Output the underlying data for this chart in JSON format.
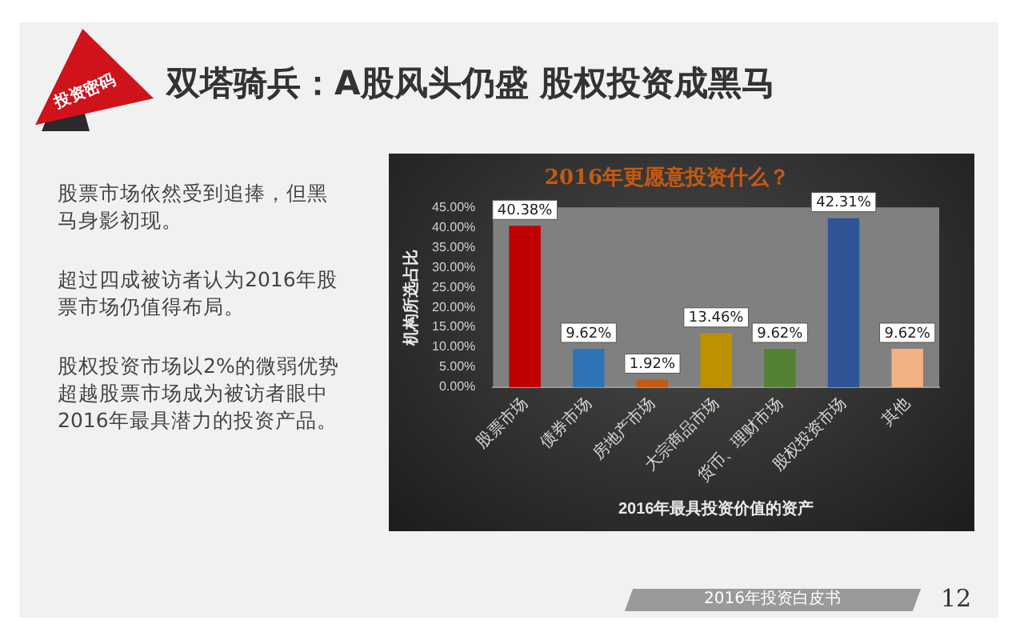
{
  "chart_data": {
    "type": "bar",
    "title": "2016年更愿意投资什么？",
    "xlabel": "2016年最具投资价值的资产",
    "ylabel": "机构所选占比",
    "categories": [
      "股票市场",
      "债券市场",
      "房地产市场",
      "大宗商品市场",
      "货币、理财市场",
      "股权投资市场",
      "其他"
    ],
    "values": [
      40.38,
      9.62,
      1.92,
      13.46,
      9.62,
      42.31,
      9.62
    ],
    "colors": [
      "#c00000",
      "#2e75b6",
      "#c55a11",
      "#bf9000",
      "#548235",
      "#2f5597",
      "#f4b183"
    ],
    "value_labels": [
      "40.38%",
      "9.62%",
      "1.92%",
      "13.46%",
      "9.62%",
      "42.31%",
      "9.62%"
    ],
    "ylim": [
      0,
      45
    ],
    "yticks": [
      {
        "value": 0,
        "label": "0.00%"
      },
      {
        "value": 5,
        "label": "5.00%"
      },
      {
        "value": 10,
        "label": "10.00%"
      },
      {
        "value": 15,
        "label": "15.00%"
      },
      {
        "value": 20,
        "label": "20.00%"
      },
      {
        "value": 25,
        "label": "25.00%"
      },
      {
        "value": 30,
        "label": "30.00%"
      },
      {
        "value": 35,
        "label": "35.00%"
      },
      {
        "value": 40,
        "label": "40.00%"
      },
      {
        "value": 45,
        "label": "45.00%"
      }
    ],
    "annotations": [
      "双塔骑兵：A股风头仍盛 股权投资成黑马",
      "投资密码",
      "股票市场依然受到追捧，但黑马身影初现。",
      "超过四成被访者认为2016年股票市场仍值得布局。",
      "股权投资市场以2%的微弱优势超越股票市场成为被访者眼中2016年最具潜力的投资产品。",
      "2016年投资白皮书",
      "12"
    ]
  }
}
